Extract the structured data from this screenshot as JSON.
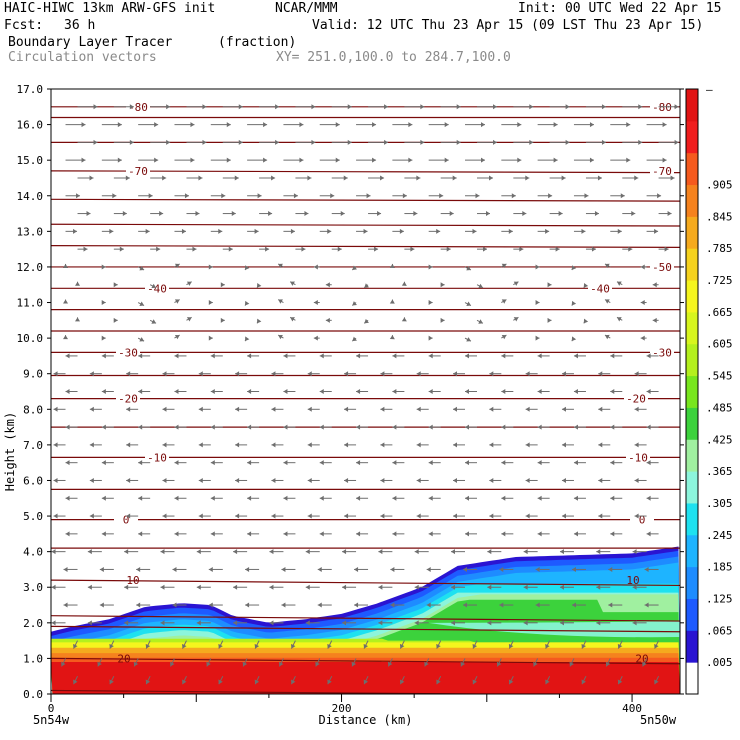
{
  "header": {
    "model": "HAIC-HIWC 13km ARW-GFS init",
    "org": "NCAR/MMM",
    "init": "Init: 00 UTC Wed 22 Apr 15",
    "fcst_label": "Fcst:",
    "fcst_value": "36 h",
    "valid": "Valid: 12 UTC Thu 23 Apr 15 (09 LST Thu 23 Apr 15)",
    "field": "Boundary Layer Tracer",
    "units": "(fraction)",
    "vectors": "Circulation vectors",
    "xy": "XY= 251.0,100.0 to 284.7,100.0"
  },
  "colors": {
    "contour": "#7a0a0a",
    "vector": "#6e6e6e"
  },
  "chart_data": {
    "type": "heatmap",
    "title": "Boundary Layer Tracer (fraction)",
    "xlabel": "Distance (km)",
    "ylabel": "Height (km)",
    "xlim": [
      0,
      433
    ],
    "ylim": [
      0,
      17
    ],
    "x_ticks": [
      {
        "value": 0,
        "label": "0"
      },
      {
        "value": 200,
        "label": "200"
      },
      {
        "value": 400,
        "label": "400"
      }
    ],
    "x_end_labels": {
      "left": "5n54w",
      "right": "5n50w"
    },
    "y_ticks": [
      "0.0",
      "1.0",
      "2.0",
      "3.0",
      "4.0",
      "5.0",
      "6.0",
      "7.0",
      "8.0",
      "9.0",
      "10.0",
      "11.0",
      "12.0",
      "13.0",
      "14.0",
      "15.0",
      "16.0",
      "17.0"
    ],
    "colorbar": {
      "labels": [
        ".005",
        ".065",
        ".125",
        ".185",
        ".245",
        ".305",
        ".365",
        ".425",
        ".485",
        ".545",
        ".605",
        ".665",
        ".725",
        ".785",
        ".845",
        ".905"
      ],
      "top_label": "–",
      "colors": [
        "#ffffff",
        "#2a14d2",
        "#1e5aff",
        "#1e8cff",
        "#1eb4ff",
        "#1ee1f0",
        "#8cf5dc",
        "#a0f0a0",
        "#3cd23c",
        "#78e61e",
        "#b4f01e",
        "#d7f51e",
        "#f5f51e",
        "#f5d21e",
        "#f5aa1e",
        "#f5821e",
        "#f55a1e",
        "#f01e1e",
        "#e11414"
      ]
    },
    "tracer_top_km": [
      [
        0,
        1.75
      ],
      [
        15,
        1.9
      ],
      [
        40,
        2.1
      ],
      [
        65,
        2.45
      ],
      [
        90,
        2.55
      ],
      [
        110,
        2.5
      ],
      [
        125,
        2.2
      ],
      [
        150,
        2.0
      ],
      [
        175,
        2.1
      ],
      [
        200,
        2.25
      ],
      [
        225,
        2.55
      ],
      [
        255,
        3.0
      ],
      [
        280,
        3.6
      ],
      [
        320,
        3.85
      ],
      [
        360,
        3.9
      ],
      [
        400,
        3.95
      ],
      [
        433,
        4.15
      ]
    ],
    "temperature_contour_labels": [
      "-80",
      "-70",
      "-50",
      "-40",
      "-30",
      "-20",
      "-10",
      "0",
      "10",
      "20"
    ]
  }
}
